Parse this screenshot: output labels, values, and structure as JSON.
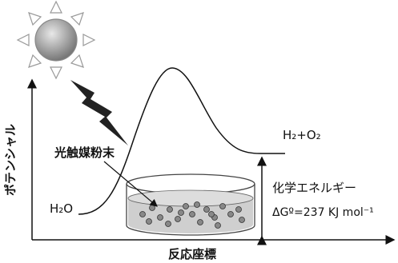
{
  "axes": {
    "y_label": "ポテンシャル",
    "x_label": "反応座標"
  },
  "labels": {
    "catalyst": "光触媒粉末",
    "reactant": "H₂O",
    "product": "H₂+O₂",
    "energy": "化学エネルギー",
    "delta_g": "ΔGº=237 KJ mol⁻¹"
  }
}
